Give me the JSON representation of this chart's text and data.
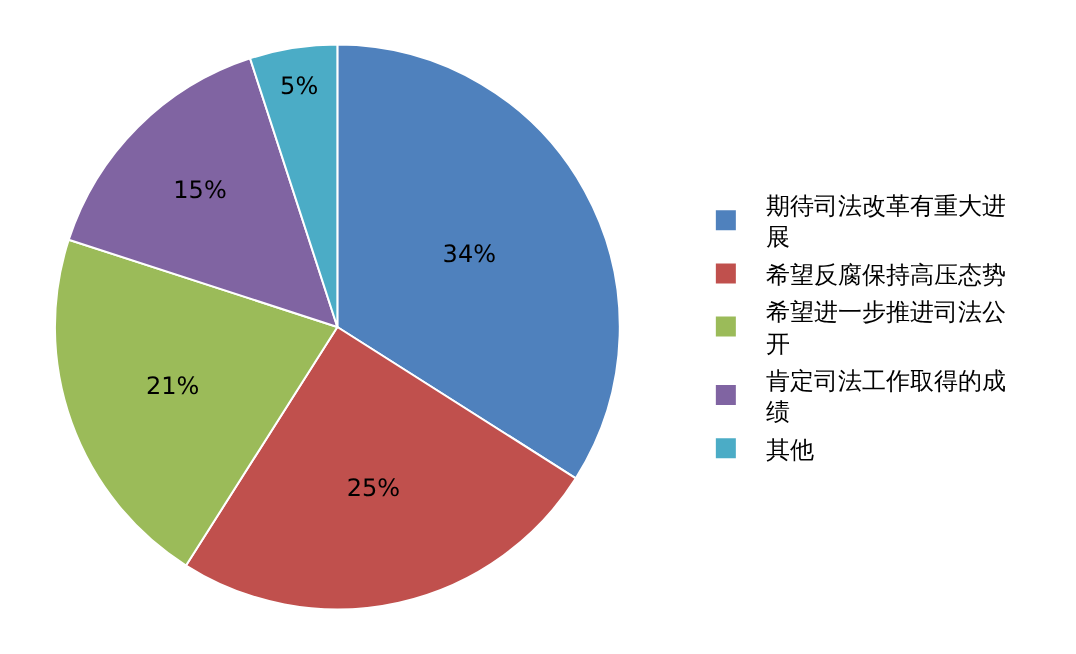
{
  "chart_data": {
    "type": "pie",
    "categories": [
      "期待司法改革有重大进展",
      "希望反腐保持高压态势",
      "希望进一步推进司法公开",
      "肯定司法工作取得的成绩",
      "其他"
    ],
    "values": [
      34,
      25,
      21,
      15,
      5
    ],
    "value_labels": [
      "34%",
      "25%",
      "21%",
      "15%",
      "5%"
    ],
    "colors": [
      "#4f81bd",
      "#c0504d",
      "#9bbb59",
      "#8064a2",
      "#4bacc6"
    ],
    "legend": "right"
  }
}
